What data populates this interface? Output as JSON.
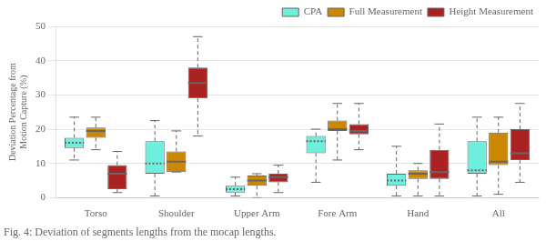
{
  "chart_data": {
    "type": "box",
    "title": "Fig. 4: Deviation of segments lengths from the mocap lengths.",
    "ylabel": "Deviation Percentage from\nMotion Capture (%)",
    "categories": [
      "Torso",
      "Shoulder",
      "Upper Arm",
      "Fore Arm",
      "Hand",
      "All"
    ],
    "series": [
      {
        "name": "CPA",
        "color": "#6EEEDD",
        "line_style": "dotted",
        "boxes": [
          {
            "whislo": 11.0,
            "q1": 14.5,
            "med": 16.0,
            "q3": 17.5,
            "whishi": 23.5
          },
          {
            "whislo": 0.5,
            "q1": 7.0,
            "med": 10.0,
            "q3": 16.5,
            "whishi": 22.5
          },
          {
            "whislo": 0.5,
            "q1": 1.5,
            "med": 2.5,
            "q3": 3.5,
            "whishi": 6.0
          },
          {
            "whislo": 4.5,
            "q1": 13.0,
            "med": 16.5,
            "q3": 18.0,
            "whishi": 20.0
          },
          {
            "whislo": 0.5,
            "q1": 3.5,
            "med": 5.0,
            "q3": 7.0,
            "whishi": 15.0
          },
          {
            "whislo": 0.5,
            "q1": 7.0,
            "med": 8.0,
            "q3": 16.5,
            "whishi": 23.5
          }
        ]
      },
      {
        "name": "Full Measurement",
        "color": "#CC8800",
        "line_style": "solid",
        "boxes": [
          {
            "whislo": 14.0,
            "q1": 17.5,
            "med": 19.5,
            "q3": 20.5,
            "whishi": 23.5
          },
          {
            "whislo": 7.5,
            "q1": 7.5,
            "med": 10.5,
            "q3": 13.5,
            "whishi": 19.5
          },
          {
            "whislo": 0.0,
            "q1": 3.5,
            "med": 5.0,
            "q3": 6.5,
            "whishi": 7.0
          },
          {
            "whislo": 11.0,
            "q1": 19.5,
            "med": 20.0,
            "q3": 22.5,
            "whishi": 27.5
          },
          {
            "whislo": 0.5,
            "q1": 5.5,
            "med": 7.0,
            "q3": 8.0,
            "whishi": 10.0
          },
          {
            "whislo": 1.0,
            "q1": 9.5,
            "med": 10.5,
            "q3": 19.0,
            "whishi": 23.5
          }
        ]
      },
      {
        "name": "Height Measurement",
        "color": "#AA2222",
        "line_style": "solid",
        "boxes": [
          {
            "whislo": 1.5,
            "q1": 2.5,
            "med": 7.0,
            "q3": 9.5,
            "whishi": 13.5
          },
          {
            "whislo": 18.0,
            "q1": 29.0,
            "med": 33.5,
            "q3": 38.0,
            "whishi": 47.0
          },
          {
            "whislo": 1.5,
            "q1": 4.5,
            "med": 6.0,
            "q3": 7.0,
            "whishi": 9.5
          },
          {
            "whislo": 14.0,
            "q1": 18.5,
            "med": 19.5,
            "q3": 21.5,
            "whishi": 27.5
          },
          {
            "whislo": 0.5,
            "q1": 5.5,
            "med": 7.5,
            "q3": 14.0,
            "whishi": 21.5
          },
          {
            "whislo": 4.5,
            "q1": 11.0,
            "med": 13.0,
            "q3": 20.0,
            "whishi": 27.5
          }
        ]
      }
    ],
    "ylim": [
      0,
      50
    ],
    "yticks": [
      0,
      10,
      20,
      30,
      40,
      50
    ],
    "grid": true,
    "legend": "upper right"
  }
}
